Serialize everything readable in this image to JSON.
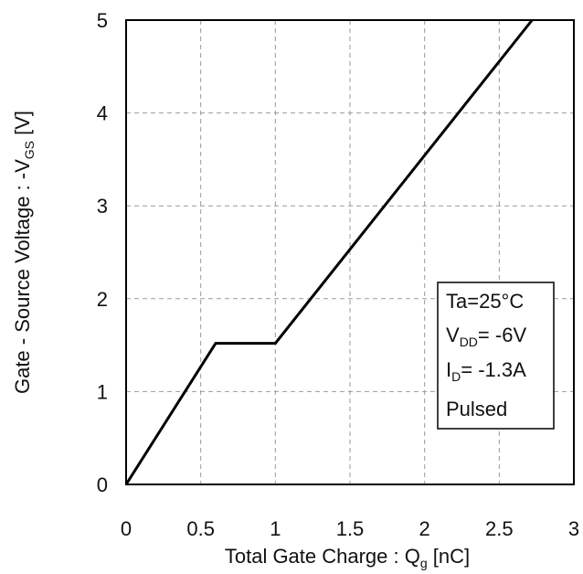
{
  "chart_data": {
    "type": "line",
    "xlabel_parts": {
      "main": "Total Gate Charge : Q",
      "sub": "g",
      "tail": " [nC]"
    },
    "ylabel_parts": {
      "main": "Gate - Source Voltage : -V",
      "sub": "GS",
      "tail": " [V]"
    },
    "xlim": [
      0,
      3
    ],
    "ylim": [
      0,
      5
    ],
    "x_ticks": [
      "0",
      "0.5",
      "1",
      "1.5",
      "2",
      "2.5",
      "3"
    ],
    "y_ticks": [
      "0",
      "1",
      "2",
      "3",
      "4",
      "5"
    ],
    "grid": true,
    "series": [
      {
        "color": "#000000",
        "points": [
          {
            "x": 0,
            "y": 0
          },
          {
            "x": 0.6,
            "y": 1.52
          },
          {
            "x": 1.0,
            "y": 1.52
          },
          {
            "x": 2.72,
            "y": 5.0
          }
        ]
      }
    ],
    "legend_box": {
      "placement": "right",
      "lines": [
        {
          "main": "Ta=25°C",
          "sub": "",
          "tail": ""
        },
        {
          "main": "V",
          "sub": "DD",
          "tail": "= -6V"
        },
        {
          "main": "I",
          "sub": "D",
          "tail": "= -1.3A"
        },
        {
          "main": "Pulsed",
          "sub": "",
          "tail": ""
        }
      ]
    }
  }
}
